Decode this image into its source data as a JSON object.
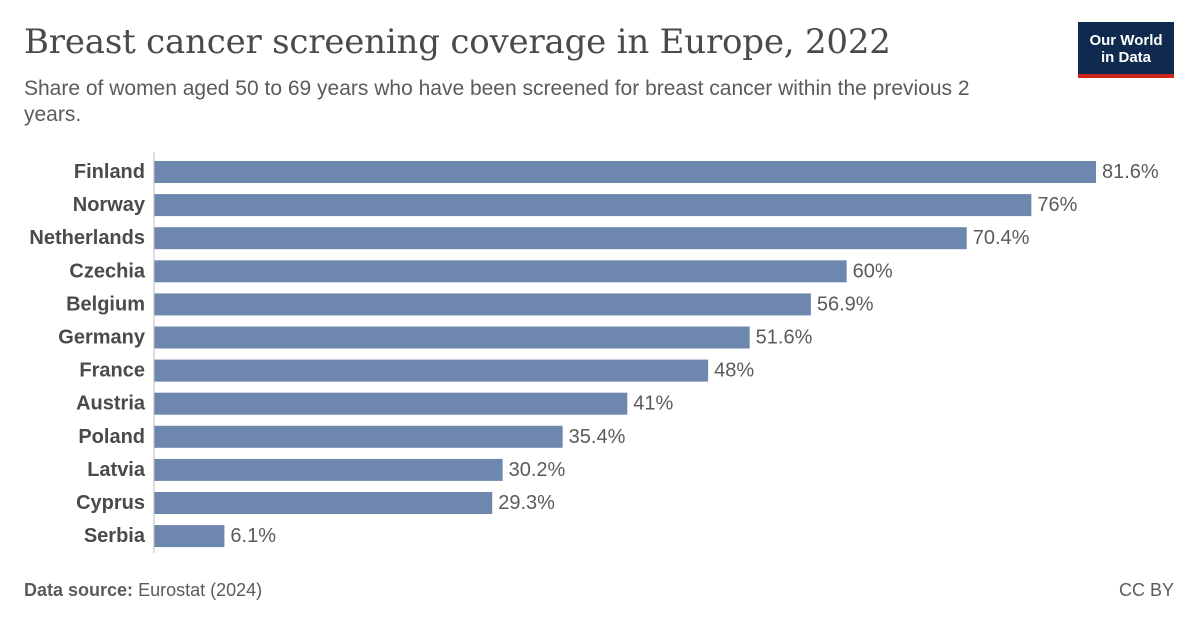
{
  "header": {
    "title": "Breast cancer screening coverage in Europe, 2022",
    "subtitle": "Share of women aged 50 to 69 years who have been screened for breast cancer within the previous 2 years.",
    "logo_line1": "Our World",
    "logo_line2": "in Data"
  },
  "footer": {
    "source_label": "Data source:",
    "source_value": "Eurostat (2024)",
    "license": "CC BY"
  },
  "colors": {
    "bar": "#6d87af",
    "axis": "#bdbdbd",
    "label": "#4a4a4a",
    "value_label": "#5b5b5b",
    "logo_bg": "#0f2a4e",
    "logo_accent": "#ce261e"
  },
  "chart_data": {
    "type": "bar",
    "orientation": "horizontal",
    "categories": [
      "Finland",
      "Norway",
      "Netherlands",
      "Czechia",
      "Belgium",
      "Germany",
      "France",
      "Austria",
      "Poland",
      "Latvia",
      "Cyprus",
      "Serbia"
    ],
    "values": [
      81.6,
      76,
      70.4,
      60,
      56.9,
      51.6,
      48,
      41,
      35.4,
      30.2,
      29.3,
      6.1
    ],
    "value_labels": [
      "81.6%",
      "76%",
      "70.4%",
      "60%",
      "56.9%",
      "51.6%",
      "48%",
      "41%",
      "35.4%",
      "30.2%",
      "29.3%",
      "6.1%"
    ],
    "unit": "%",
    "xlim": [
      0,
      81.6
    ],
    "grid": false,
    "legend": "none"
  }
}
